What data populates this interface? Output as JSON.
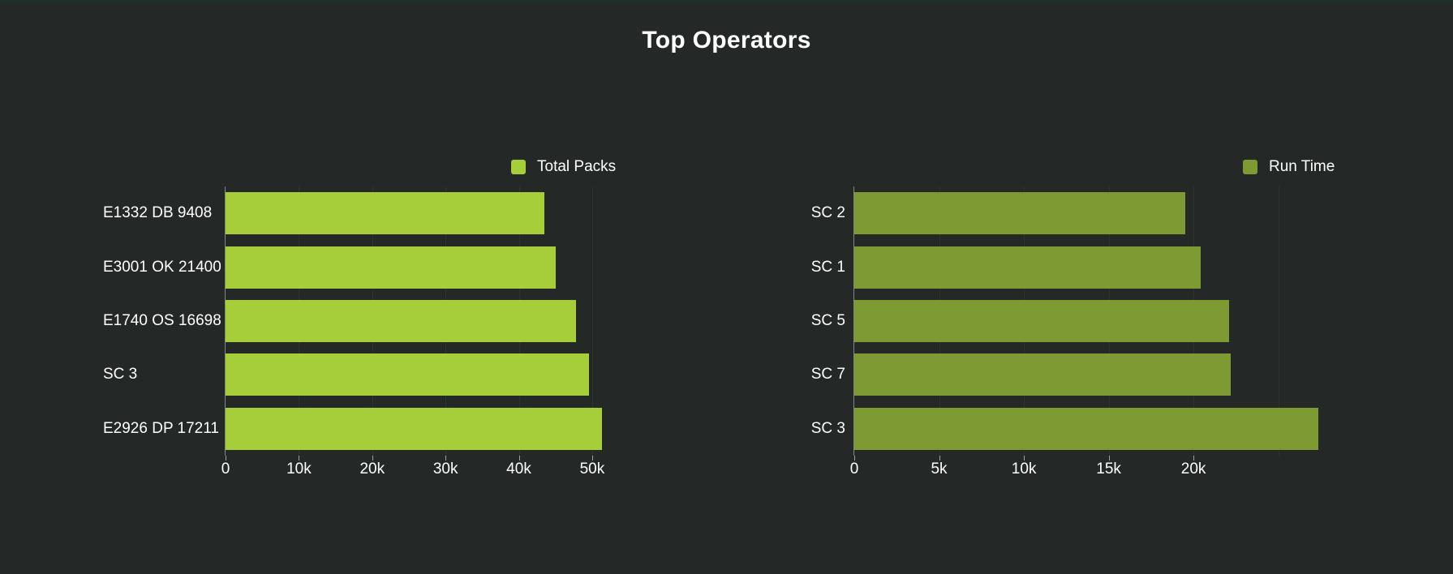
{
  "title": "Top Operators",
  "colors": {
    "background": "#242927",
    "top_strip": "#1b2f2b",
    "text": "#ffffff",
    "axis_line": "#848783",
    "gridline": "#2d332d",
    "tick_mark": "#9da09b",
    "total_packs_green": "#a5ce38",
    "run_time_olive": "#7e9a33"
  },
  "chart_data": [
    {
      "type": "bar",
      "orientation": "horizontal",
      "series_name": "Total Packs",
      "bar_color": "#a5ce38",
      "categories": [
        "E1332 DB 9408",
        "E3001 OK 21400",
        "E1740 OS 16698",
        "SC 3",
        "E2926 DP 17211"
      ],
      "values": [
        43500,
        45000,
        47800,
        49600,
        51300
      ],
      "xlim": [
        0,
        52000
      ],
      "ticks": [
        {
          "value": 0,
          "label": "0"
        },
        {
          "value": 10000,
          "label": "10k"
        },
        {
          "value": 20000,
          "label": "20k"
        },
        {
          "value": 30000,
          "label": "30k"
        },
        {
          "value": 40000,
          "label": "40k"
        },
        {
          "value": 50000,
          "label": "50k"
        }
      ],
      "grid": true,
      "legend_position": "top-right",
      "category_label_align": "left"
    },
    {
      "type": "bar",
      "orientation": "horizontal",
      "series_name": "Run Time",
      "bar_color": "#7e9a33",
      "categories": [
        "SC 2",
        "SC 1",
        "SC 5",
        "SC 7",
        "SC 3"
      ],
      "values": [
        19500,
        20400,
        22100,
        22200,
        27350
      ],
      "xlim": [
        0,
        27600
      ],
      "ticks": [
        {
          "value": 0,
          "label": "0"
        },
        {
          "value": 5000,
          "label": "5k"
        },
        {
          "value": 10000,
          "label": "10k"
        },
        {
          "value": 15000,
          "label": "15k"
        },
        {
          "value": 20000,
          "label": "20k"
        }
      ],
      "grid": true,
      "legend_position": "top-right",
      "category_label_align": "right"
    }
  ]
}
